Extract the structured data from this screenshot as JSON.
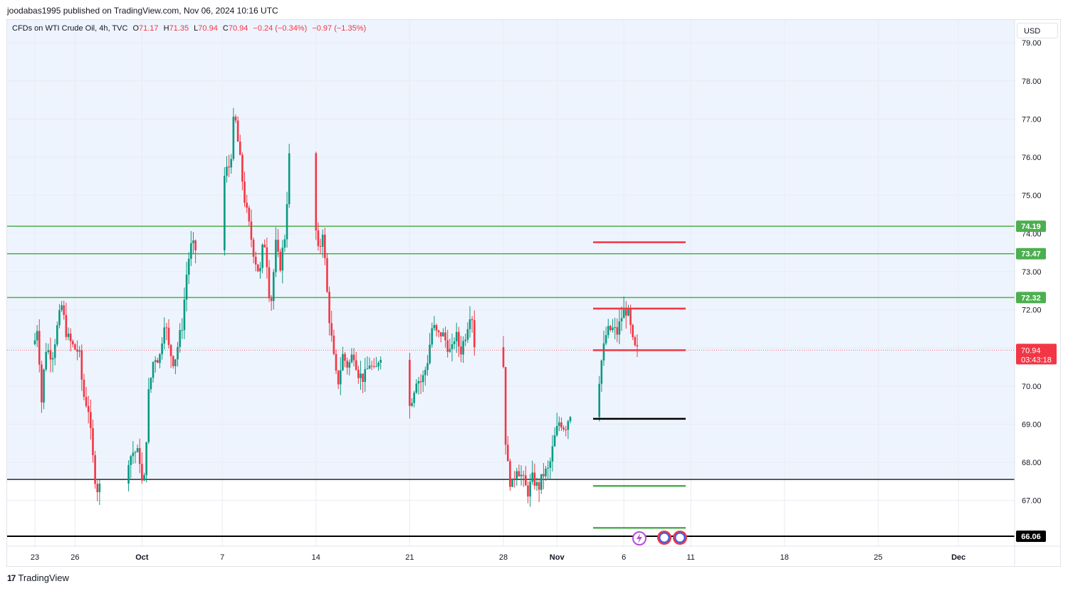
{
  "publisher_line": "joodabas1995 published on TradingView.com, Nov 06, 2024 10:16 UTC",
  "legend": {
    "symbol": "CFDs on WTI Crude Oil, 4h, TVC",
    "open_key": "O",
    "open": "71.17",
    "high_key": "H",
    "high": "71.35",
    "low_key": "L",
    "low": "70.94",
    "close_key": "C",
    "close": "70.94",
    "change": "−0.24 (−0.34%)",
    "change2": "−0.97 (−1.35%)"
  },
  "currency": "USD",
  "brand": "TradingView",
  "colors": {
    "up": "#089981",
    "down": "#f23645",
    "shade": "#eef4fd",
    "green_level": "#4caf50",
    "red_level": "#f23645",
    "black_level": "#000000"
  },
  "chart_data": {
    "type": "candlestick",
    "symbol": "WTI Crude Oil",
    "timeframe": "4h",
    "ylim": [
      65.8,
      79.6
    ],
    "y_ticks": [
      "79.00",
      "78.00",
      "77.00",
      "76.00",
      "75.00",
      "74.00",
      "73.00",
      "72.00",
      "71.00",
      "70.00",
      "69.00",
      "68.00",
      "67.00"
    ],
    "x_ticks": [
      {
        "label": "23",
        "day": 0,
        "bold": false
      },
      {
        "label": "26",
        "day": 3,
        "bold": false
      },
      {
        "label": "Oct",
        "day": 8,
        "bold": true
      },
      {
        "label": "7",
        "day": 14,
        "bold": false
      },
      {
        "label": "14",
        "day": 21,
        "bold": false
      },
      {
        "label": "21",
        "day": 28,
        "bold": false
      },
      {
        "label": "28",
        "day": 35,
        "bold": false
      },
      {
        "label": "Nov",
        "day": 39,
        "bold": true
      },
      {
        "label": "6",
        "day": 44,
        "bold": false
      },
      {
        "label": "11",
        "day": 49,
        "bold": false
      },
      {
        "label": "18",
        "day": 56,
        "bold": false
      },
      {
        "label": "25",
        "day": 63,
        "bold": false
      },
      {
        "label": "Dec",
        "day": 69,
        "bold": true
      }
    ],
    "price_path": [
      [
        -2.0,
        71.1
      ],
      [
        -1.4,
        70.7
      ],
      [
        -0.8,
        71.5
      ],
      [
        -0.2,
        70.8
      ],
      [
        0.2,
        71.6
      ],
      [
        0.5,
        69.6
      ],
      [
        0.8,
        71.0
      ],
      [
        1.3,
        70.8
      ],
      [
        1.7,
        71.6
      ],
      [
        2.0,
        72.1
      ],
      [
        2.4,
        71.3
      ],
      [
        2.9,
        71.0
      ],
      [
        3.3,
        70.9
      ],
      [
        3.6,
        69.8
      ],
      [
        4.0,
        69.4
      ],
      [
        4.3,
        68.2
      ],
      [
        4.6,
        67.3
      ],
      [
        5.4,
        67.5
      ],
      [
        6.1,
        68.3
      ],
      [
        6.4,
        68.8
      ],
      [
        7.0,
        68.1
      ],
      [
        7.4,
        68.3
      ],
      [
        7.8,
        68.2
      ],
      [
        8.1,
        67.1
      ],
      [
        8.5,
        69.8
      ],
      [
        8.9,
        70.8
      ],
      [
        9.3,
        70.7
      ],
      [
        9.7,
        71.8
      ],
      [
        10.0,
        71.0
      ],
      [
        10.4,
        70.6
      ],
      [
        11.0,
        71.6
      ],
      [
        11.4,
        73.2
      ],
      [
        11.7,
        73.7
      ],
      [
        12.2,
        73.5
      ],
      [
        12.6,
        74.2
      ],
      [
        12.9,
        75.1
      ],
      [
        13.2,
        74.0
      ],
      [
        13.5,
        73.9
      ],
      [
        13.8,
        74.3
      ],
      [
        14.2,
        75.6
      ],
      [
        14.6,
        75.8
      ],
      [
        14.9,
        77.2
      ],
      [
        15.3,
        76.0
      ],
      [
        15.7,
        74.8
      ],
      [
        16.0,
        74.2
      ],
      [
        16.4,
        73.4
      ],
      [
        16.8,
        72.9
      ],
      [
        17.1,
        73.9
      ],
      [
        17.3,
        73.4
      ],
      [
        17.6,
        72.0
      ],
      [
        18.0,
        73.7
      ],
      [
        18.3,
        73.1
      ],
      [
        18.7,
        74.0
      ],
      [
        19.0,
        76.0
      ],
      [
        19.3,
        75.7
      ],
      [
        19.6,
        75.3
      ],
      [
        20.0,
        75.5
      ],
      [
        20.4,
        74.6
      ],
      [
        20.8,
        74.7
      ],
      [
        21.2,
        73.4
      ],
      [
        21.5,
        74.1
      ],
      [
        21.9,
        72.1
      ],
      [
        22.3,
        70.8
      ],
      [
        22.6,
        70.0
      ],
      [
        23.0,
        70.8
      ],
      [
        23.4,
        70.5
      ],
      [
        23.8,
        70.9
      ],
      [
        24.2,
        70.3
      ],
      [
        24.6,
        70.2
      ],
      [
        25.0,
        70.6
      ],
      [
        25.4,
        70.3
      ],
      [
        25.8,
        70.9
      ],
      [
        26.2,
        70.2
      ],
      [
        26.6,
        69.2
      ],
      [
        27.0,
        69.0
      ],
      [
        27.4,
        68.7
      ],
      [
        27.8,
        69.2
      ],
      [
        28.1,
        69.6
      ],
      [
        28.5,
        70.2
      ],
      [
        28.9,
        70.1
      ],
      [
        29.3,
        70.6
      ],
      [
        29.7,
        71.6
      ],
      [
        30.1,
        71.3
      ],
      [
        30.4,
        71.4
      ],
      [
        30.8,
        71.1
      ],
      [
        31.1,
        70.8
      ],
      [
        31.4,
        71.4
      ],
      [
        31.8,
        70.9
      ],
      [
        32.2,
        71.4
      ],
      [
        32.6,
        72.1
      ],
      [
        33.0,
        70.4
      ],
      [
        33.4,
        69.8
      ],
      [
        33.7,
        70.3
      ],
      [
        34.1,
        70.5
      ],
      [
        34.5,
        71.3
      ],
      [
        34.9,
        71.7
      ],
      [
        35.2,
        68.2
      ],
      [
        35.6,
        67.3
      ],
      [
        36.0,
        67.9
      ],
      [
        36.4,
        67.6
      ],
      [
        36.8,
        67.2
      ],
      [
        37.2,
        67.6
      ],
      [
        37.6,
        67.3
      ],
      [
        38.0,
        67.7
      ],
      [
        38.4,
        67.8
      ],
      [
        38.8,
        68.6
      ],
      [
        39.2,
        69.1
      ],
      [
        39.6,
        68.9
      ],
      [
        40.0,
        69.3
      ],
      [
        40.4,
        69.6
      ],
      [
        40.8,
        70.4
      ],
      [
        41.2,
        70.9
      ],
      [
        41.6,
        70.2
      ],
      [
        41.9,
        69.4
      ],
      [
        42.3,
        70.6
      ],
      [
        42.7,
        71.4
      ],
      [
        43.1,
        71.5
      ],
      [
        43.5,
        71.4
      ],
      [
        43.9,
        71.9
      ],
      [
        44.2,
        72.0
      ],
      [
        44.4,
        71.8
      ],
      [
        44.6,
        71.2
      ],
      [
        44.9,
        70.9
      ],
      [
        45.1,
        70.94
      ]
    ],
    "levels": {
      "green_full": [
        "74.19",
        "73.47",
        "72.32"
      ],
      "black_full": [
        "67.55",
        "66.06"
      ],
      "short_red": [
        "73.77",
        "72.03",
        "70.94"
      ],
      "short_black": [
        "69.14"
      ],
      "short_green": [
        "67.38",
        "66.28"
      ]
    },
    "shade_range": [
      67.55,
      79.6
    ],
    "last_price": "70.94",
    "countdown": "03:43:18",
    "labeled_prices": [
      "74.19",
      "73.47",
      "72.32",
      "66.06"
    ]
  }
}
